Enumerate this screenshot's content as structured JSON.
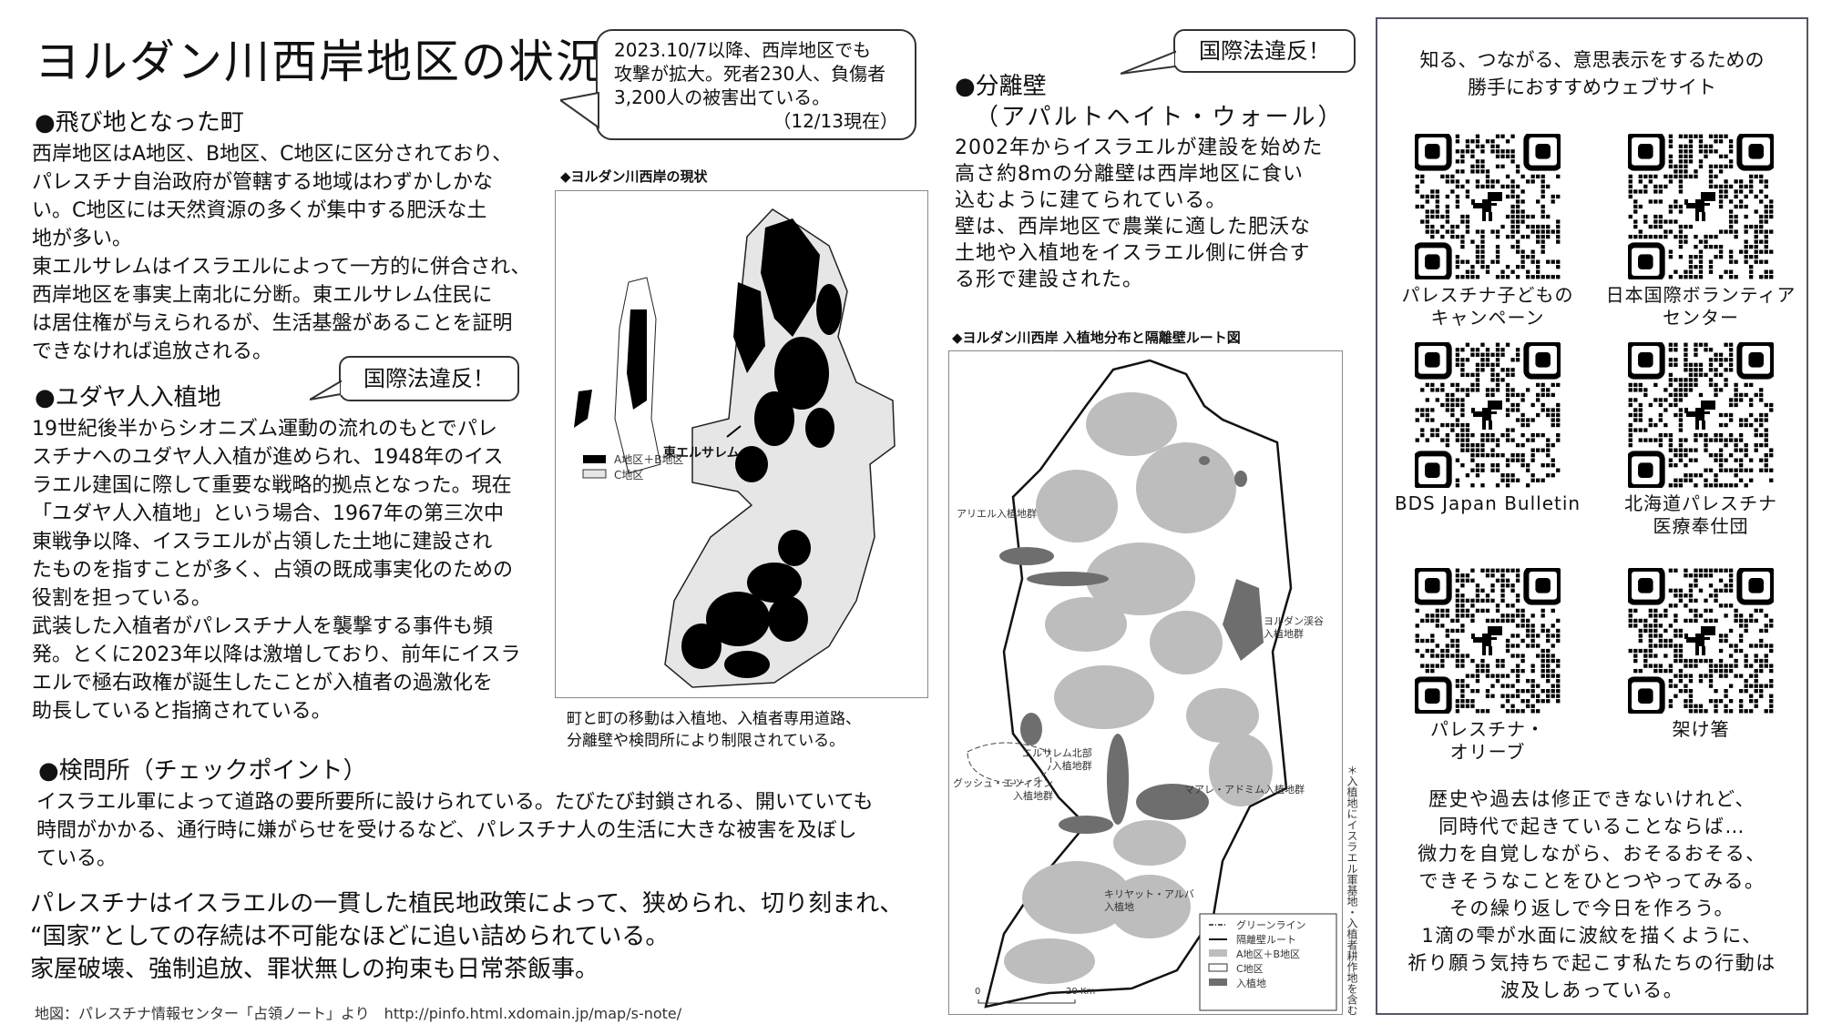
{
  "title": "ヨルダン川西岸地区の状況",
  "bubble_top": {
    "lines": [
      "2023.10/7以降、西岸地区でも",
      "攻撃が拡大。死者230人、負傷者",
      "3,200人の被害出ている。"
    ],
    "date": "（12/13現在）"
  },
  "sections": [
    {
      "heading": "●飛び地となった町",
      "lines": [
        "西岸地区はA地区、B地区、C地区に区分されており、",
        "パレスチナ自治政府が管轄する地域はわずかしかな",
        "い。C地区には天然資源の多くが集中する肥沃な土",
        "地が多い。",
        "東エルサレムはイスラエルによって一方的に併合され、",
        "西岸地区を事実上南北に分断。東エルサレム住民に",
        "は居住権が与えられるが、生活基盤があることを証明",
        "できなければ追放される。"
      ]
    },
    {
      "heading": "●ユダヤ人入植地",
      "bubble": "国際法違反！",
      "lines": [
        "19世紀後半からシオニズム運動の流れのもとでパレ",
        "スチナへのユダヤ人入植が進められ、1948年のイス",
        "ラエル建国に際して重要な戦略的拠点となった。現在",
        "「ユダヤ人入植地」という場合、1967年の第三次中",
        "東戦争以降、イスラエルが占領した土地に建設され",
        "たものを指すことが多く、占領の既成事実化のための",
        "役割を担っている。",
        "武装した入植者がパレスチナ人を襲撃する事件も頻",
        "発。とくに2023年以降は激増しており、前年にイスラ",
        "エルで極右政権が誕生したことが入植者の過激化を",
        "助長していると指摘されている。"
      ]
    },
    {
      "heading": "●検問所（チェックポイント）",
      "lines": [
        "イスラエル軍によって道路の要所要所に設けられている。たびたび封鎖される、開いていても",
        "時間がかかる、通行時に嫌がらせを受けるなど、パレスチナ人の生活に大きな被害を及ぼし",
        "ている。"
      ]
    },
    {
      "heading": "●分離壁",
      "subheading": "（アパルトヘイト・ウォール）",
      "bubble": "国際法違反！",
      "lines": [
        "2002年からイスラエルが建設を始めた",
        "高さ約8ｍの分離壁は西岸地区に食い",
        "込むように建てられている。",
        "壁は、西岸地区で農業に適した肥沃な",
        "土地や入植地をイスラエル側に併合す",
        "る形で建設された。"
      ]
    }
  ],
  "conclusion": [
    "パレスチナはイスラエルの一貫した植民地政策によって、狭められ、切り刻まれ、",
    "“国家”としての存続は不可能なほどに追い詰められている。",
    "家屋破壊、強制追放、罪状無しの拘束も日常茶飯事。"
  ],
  "footer": "地図：パレスチナ情報センター「占領ノート」より　http://pinfo.html.xdomain.jp/map/s-note/",
  "map1": {
    "caption": "◆ヨルダン川西岸の現状",
    "legend": [
      "A地区＋B地区",
      "C地区"
    ],
    "label_jerusalem": "東エルサレム",
    "note": [
      "町と町の移動は入植地、入植者専用道路、",
      "分離壁や検問所により制限されている。"
    ]
  },
  "map2": {
    "caption": "◆ヨルダン川西岸 入植地分布と隔離壁ルート図",
    "labels": {
      "ariel": "アリエル入植地群",
      "jordan": [
        "ヨルダン渓谷",
        "入植地群"
      ],
      "jn": [
        "エルサレム北部",
        "入植地群"
      ],
      "gush": [
        "グッシュ・エツィオン",
        "入植地群"
      ],
      "maale": "マアレ・アドミム入植地群",
      "kiryat": [
        "キリヤット・アルバ",
        "入植地"
      ]
    },
    "legend": [
      "グリーンライン",
      "隔離壁ルート",
      "A地区＋B地区",
      "C地区",
      "入植地"
    ],
    "scale": [
      "0",
      "20 Km"
    ],
    "side_note": "＊入植地にイスラエル軍基地・入植者耕作地を含む"
  },
  "panel": {
    "heading": [
      "知る、つながる、意思表示をするための",
      "勝手におすすめウェブサイト"
    ],
    "sites": [
      {
        "label": [
          "パレスチナ子どもの",
          "キャンペーン"
        ]
      },
      {
        "label": [
          "日本国際ボランティア",
          "センター"
        ]
      },
      {
        "label": [
          "BDS Japan Bulletin"
        ]
      },
      {
        "label": [
          "北海道パレスチナ",
          "医療奉仕団"
        ]
      },
      {
        "label": [
          "パレスチナ・",
          "オリーブ"
        ]
      },
      {
        "label": [
          "架け箸"
        ]
      }
    ],
    "message": [
      "歴史や過去は修正できないけれど、",
      "同時代で起きていることならば…",
      "微力を自覚しながら、おそるおそる、",
      "できそうなことをひとつやってみる。",
      "その繰り返しで今日を作ろう。",
      "1滴の雫が水面に波紋を描くように、",
      "祈り願う気持ちで起こす私たちの行動は",
      "波及しあっている。"
    ]
  },
  "colors": {
    "ab_area": "#000000",
    "c_area": "#e6e6e6",
    "ab_area_map2": "#bdbdbd",
    "settlement": "#6e6e6e",
    "panel_border": "#556677"
  },
  "icons": {
    "qr": "qr-code-icon",
    "center": "dinosaur-icon"
  }
}
